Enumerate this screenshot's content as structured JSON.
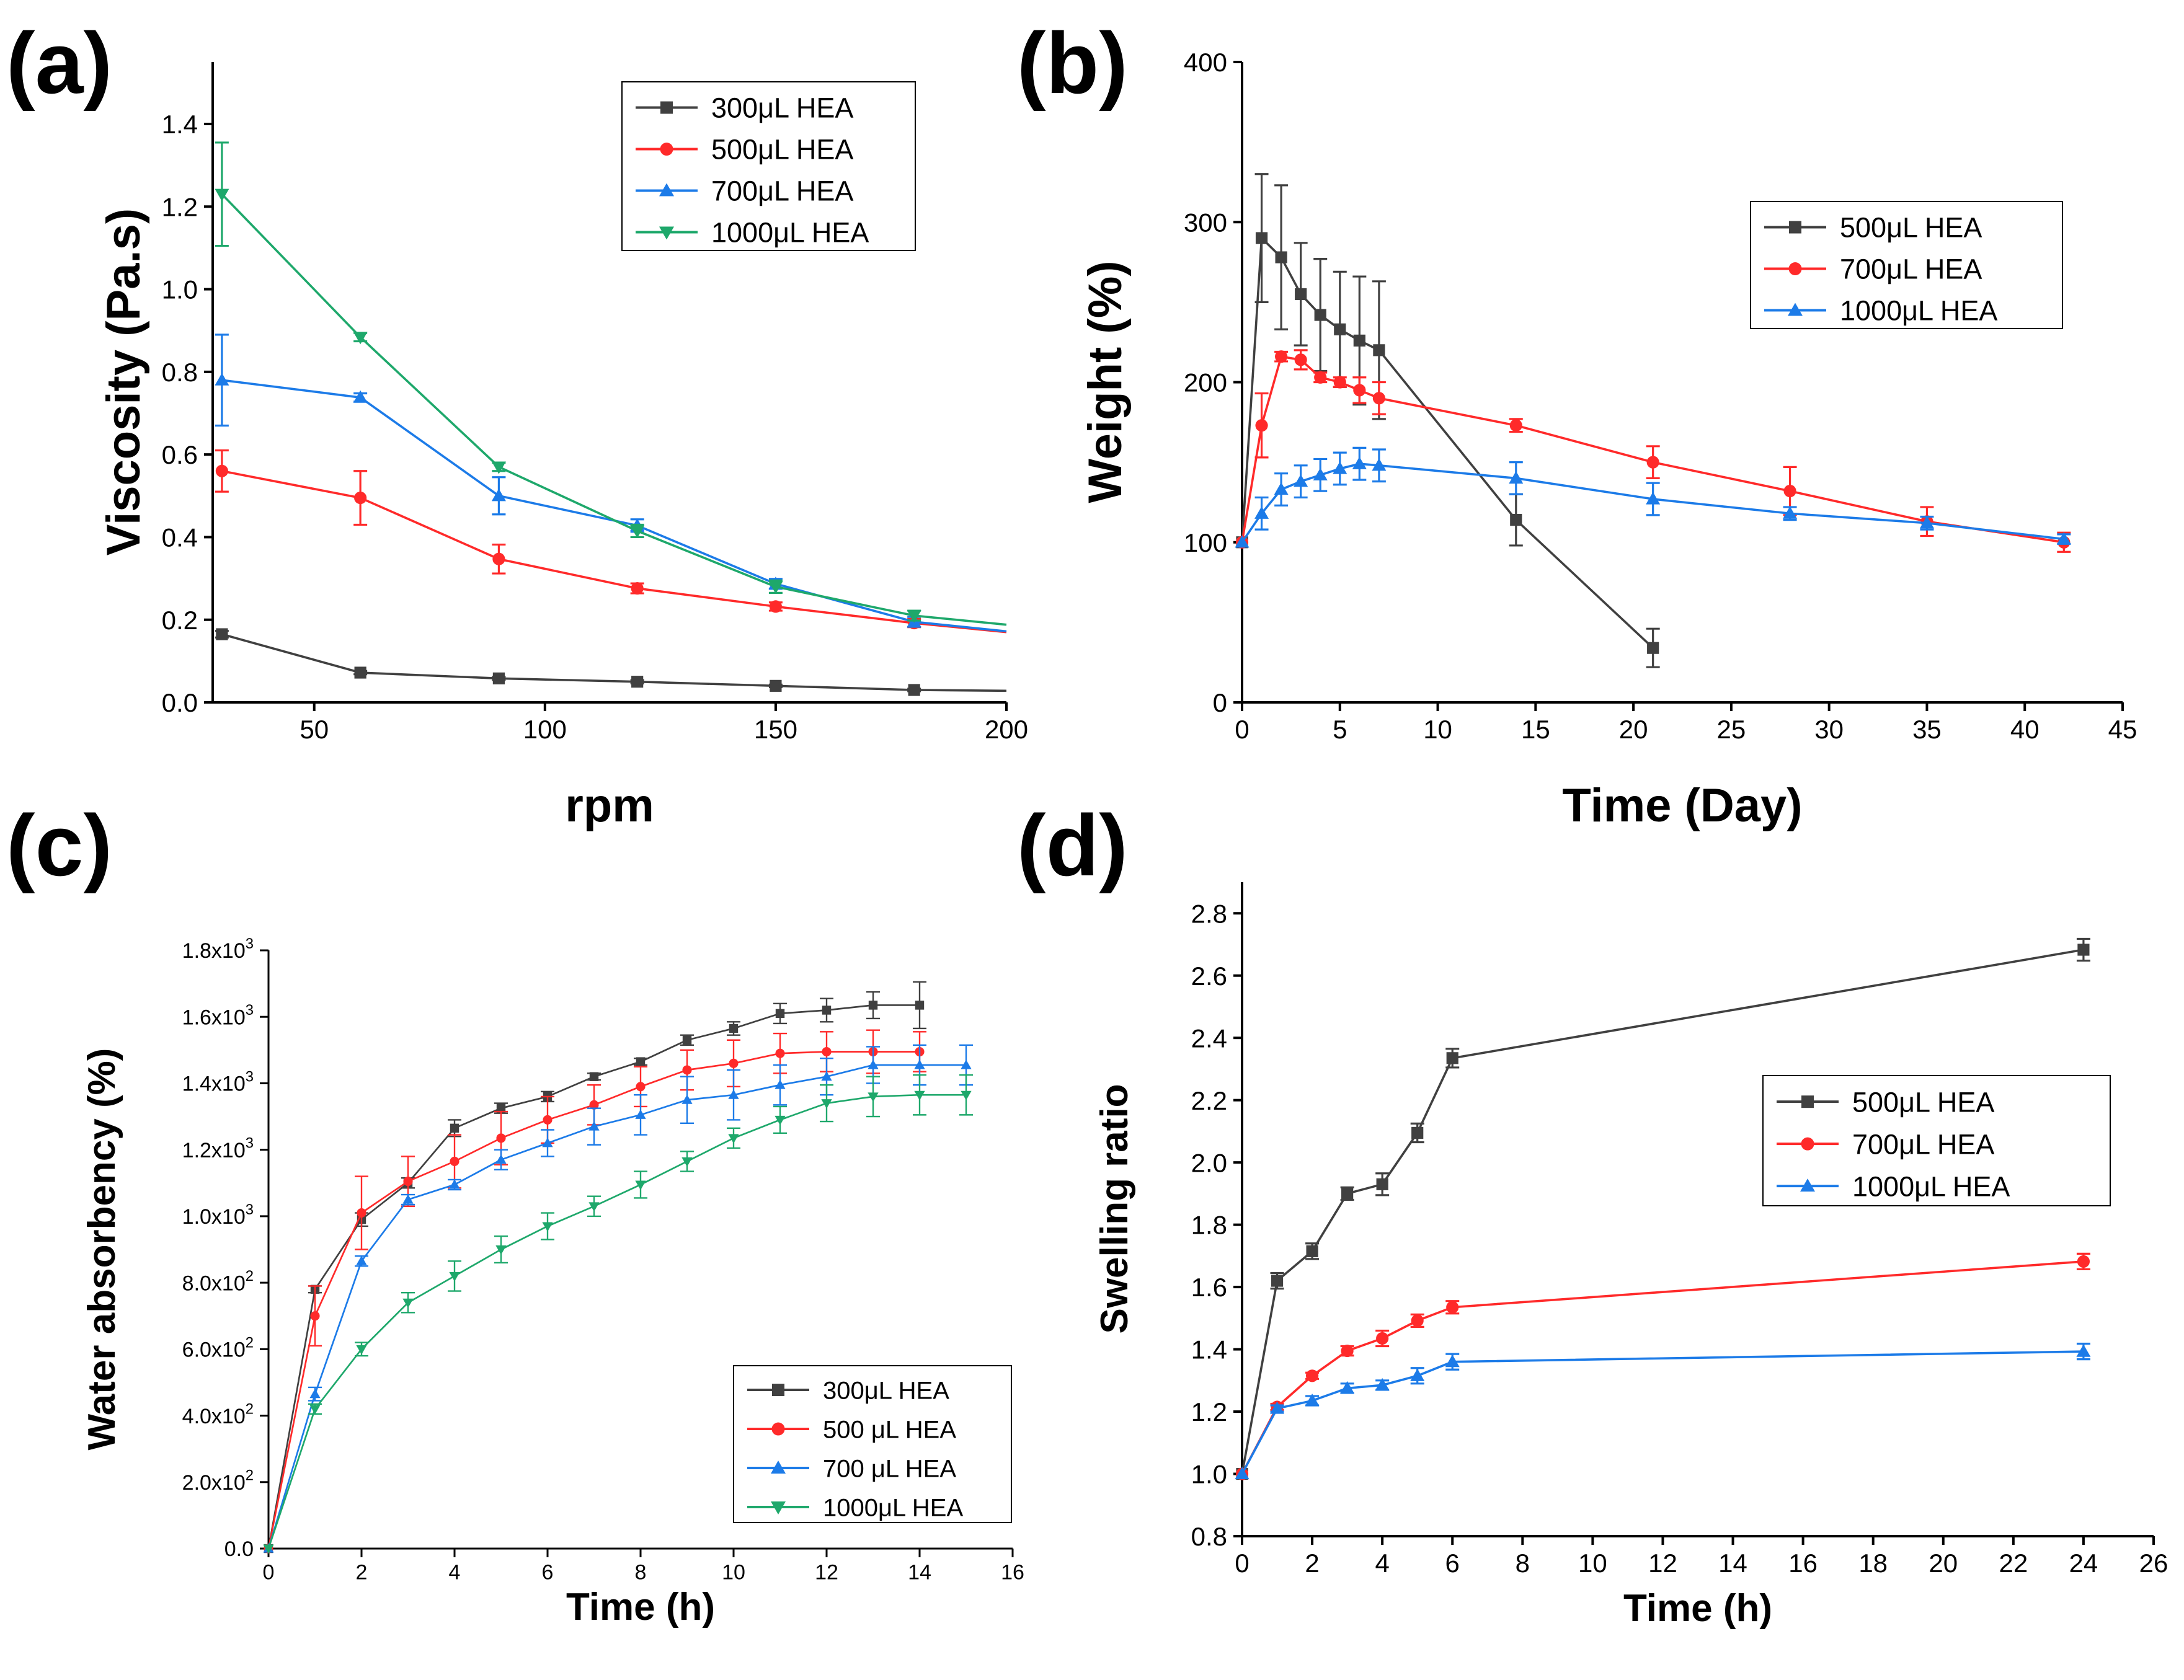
{
  "chart_data": [
    {
      "panel": "(a)",
      "type": "line",
      "title": "",
      "xlabel": "rpm",
      "ylabel": "Viscosity (Pa.s)",
      "xlim": [
        28,
        200
      ],
      "ylim": [
        0,
        1.55
      ],
      "xticks": [
        {
          "v": 50,
          "label": "50"
        },
        {
          "v": 100,
          "label": "100"
        },
        {
          "v": 150,
          "label": "150"
        },
        {
          "v": 200,
          "label": "200"
        }
      ],
      "yticks": [
        {
          "v": 0,
          "label": "0.0"
        },
        {
          "v": 0.2,
          "label": "0.2"
        },
        {
          "v": 0.4,
          "label": "0.4"
        },
        {
          "v": 0.6,
          "label": "0.6"
        },
        {
          "v": 0.8,
          "label": "0.8"
        },
        {
          "v": 1.0,
          "label": "1.0"
        },
        {
          "v": 1.2,
          "label": "1.2"
        },
        {
          "v": 1.4,
          "label": "1.4"
        }
      ],
      "legend_position": "top-right",
      "series": [
        {
          "name": "300μL HEA",
          "color": "#404040",
          "marker": "square",
          "x": [
            30,
            60,
            90,
            120,
            150,
            180,
            200
          ],
          "y": [
            0.165,
            0.072,
            0.058,
            0.05,
            0.04,
            0.03,
            0.028
          ],
          "err": [
            0.008,
            0.004,
            0.004,
            0.004,
            0.003,
            0.003,
            0
          ],
          "marked": [
            1,
            1,
            1,
            1,
            1,
            1,
            0
          ]
        },
        {
          "name": "500μL HEA",
          "color": "#ff2a2a",
          "marker": "circle",
          "x": [
            30,
            60,
            90,
            120,
            150,
            180,
            200
          ],
          "y": [
            0.56,
            0.495,
            0.347,
            0.276,
            0.232,
            0.192,
            0.17
          ],
          "err": [
            0.05,
            0.065,
            0.035,
            0.012,
            0.01,
            0.01,
            0
          ],
          "marked": [
            1,
            1,
            1,
            1,
            1,
            1,
            0
          ]
        },
        {
          "name": "700μL HEA",
          "color": "#1c7be8",
          "marker": "triangle-up",
          "x": [
            30,
            60,
            90,
            120,
            150,
            180,
            200
          ],
          "y": [
            0.78,
            0.738,
            0.5,
            0.428,
            0.287,
            0.195,
            0.172
          ],
          "err": [
            0.11,
            0.01,
            0.045,
            0.015,
            0.012,
            0.012,
            0
          ],
          "marked": [
            1,
            1,
            1,
            1,
            1,
            1,
            0
          ]
        },
        {
          "name": "1000μL HEA",
          "color": "#1ea86b",
          "marker": "triangle-down",
          "x": [
            30,
            60,
            90,
            120,
            150,
            180,
            200
          ],
          "y": [
            1.23,
            0.884,
            0.57,
            0.415,
            0.28,
            0.21,
            0.188
          ],
          "err": [
            0.125,
            0.01,
            0.01,
            0.015,
            0.015,
            0.012,
            0
          ],
          "marked": [
            1,
            1,
            1,
            1,
            1,
            1,
            0
          ]
        }
      ]
    },
    {
      "panel": "(b)",
      "type": "line",
      "title": "",
      "xlabel": "Time (Day)",
      "ylabel": "Weight (%)",
      "xlim": [
        0,
        45
      ],
      "ylim": [
        0,
        400
      ],
      "xticks": [
        {
          "v": 0,
          "label": "0"
        },
        {
          "v": 5,
          "label": "5"
        },
        {
          "v": 10,
          "label": "10"
        },
        {
          "v": 15,
          "label": "15"
        },
        {
          "v": 20,
          "label": "20"
        },
        {
          "v": 25,
          "label": "25"
        },
        {
          "v": 30,
          "label": "30"
        },
        {
          "v": 35,
          "label": "35"
        },
        {
          "v": 40,
          "label": "40"
        },
        {
          "v": 45,
          "label": "45"
        }
      ],
      "yticks": [
        {
          "v": 0,
          "label": "0"
        },
        {
          "v": 100,
          "label": "100"
        },
        {
          "v": 200,
          "label": "200"
        },
        {
          "v": 300,
          "label": "300"
        },
        {
          "v": 400,
          "label": "400"
        }
      ],
      "legend_position": "top-right",
      "series": [
        {
          "name": "500μL HEA",
          "color": "#404040",
          "marker": "square",
          "x": [
            0,
            1,
            2,
            3,
            4,
            5,
            6,
            7,
            14,
            21
          ],
          "y": [
            100,
            290,
            278,
            255,
            242,
            233,
            226,
            220,
            114,
            34
          ],
          "err": [
            0,
            40,
            45,
            32,
            35,
            36,
            40,
            43,
            16,
            12
          ],
          "marked": [
            1,
            1,
            1,
            1,
            1,
            1,
            1,
            1,
            1,
            1
          ]
        },
        {
          "name": "700μL HEA",
          "color": "#ff2a2a",
          "marker": "circle",
          "x": [
            0,
            1,
            2,
            3,
            4,
            5,
            6,
            7,
            14,
            21,
            28,
            35,
            42
          ],
          "y": [
            100,
            173,
            216,
            214,
            203,
            200,
            195,
            190,
            173,
            150,
            132,
            113,
            100
          ],
          "err": [
            0,
            20,
            3,
            6,
            3,
            3,
            8,
            10,
            4,
            10,
            15,
            9,
            6
          ],
          "marked": [
            1,
            1,
            1,
            1,
            1,
            1,
            1,
            1,
            1,
            1,
            1,
            1,
            1
          ]
        },
        {
          "name": "1000μL HEA",
          "color": "#1c7be8",
          "marker": "triangle-up",
          "x": [
            0,
            1,
            2,
            3,
            4,
            5,
            6,
            7,
            14,
            21,
            28,
            35,
            42
          ],
          "y": [
            100,
            118,
            133,
            138,
            142,
            146,
            149,
            148,
            140,
            127,
            118,
            112,
            102
          ],
          "err": [
            0,
            10,
            10,
            10,
            10,
            10,
            10,
            10,
            10,
            10,
            4,
            4,
            3
          ],
          "marked": [
            1,
            1,
            1,
            1,
            1,
            1,
            1,
            1,
            1,
            1,
            1,
            1,
            1
          ]
        }
      ]
    },
    {
      "panel": "(c)",
      "type": "line",
      "title": "",
      "xlabel": "Time (h)",
      "ylabel": "Water absorbency (%)",
      "xlim": [
        0,
        16
      ],
      "ylim": [
        0,
        1800
      ],
      "xticks": [
        {
          "v": 0,
          "label": "0"
        },
        {
          "v": 2,
          "label": "2"
        },
        {
          "v": 4,
          "label": "4"
        },
        {
          "v": 6,
          "label": "6"
        },
        {
          "v": 8,
          "label": "8"
        },
        {
          "v": 10,
          "label": "10"
        },
        {
          "v": 12,
          "label": "12"
        },
        {
          "v": 14,
          "label": "14"
        },
        {
          "v": 16,
          "label": "16"
        }
      ],
      "yticks": [
        {
          "v": 0,
          "label": "0.0",
          "mant": "",
          "exp": ""
        },
        {
          "v": 200,
          "label": "2.0x10²",
          "mant": "2.0x10",
          "exp": "2"
        },
        {
          "v": 400,
          "label": "4.0x10²",
          "mant": "4.0x10",
          "exp": "2"
        },
        {
          "v": 600,
          "label": "6.0x10²",
          "mant": "6.0x10",
          "exp": "2"
        },
        {
          "v": 800,
          "label": "8.0x10²",
          "mant": "8.0x10",
          "exp": "2"
        },
        {
          "v": 1000,
          "label": "1.0x10³",
          "mant": "1.0x10",
          "exp": "3"
        },
        {
          "v": 1200,
          "label": "1.2x10³",
          "mant": "1.2x10",
          "exp": "3"
        },
        {
          "v": 1400,
          "label": "1.4x10³",
          "mant": "1.4x10",
          "exp": "3"
        },
        {
          "v": 1600,
          "label": "1.6x10³",
          "mant": "1.6x10",
          "exp": "3"
        },
        {
          "v": 1800,
          "label": "1.8x10³",
          "mant": "1.8x10",
          "exp": "3"
        }
      ],
      "legend_position": "bottom-right",
      "series": [
        {
          "name": "300μL HEA",
          "color": "#404040",
          "marker": "square",
          "x": [
            0,
            1,
            2,
            3,
            4,
            5,
            6,
            7,
            8,
            9,
            10,
            11,
            12,
            13,
            14
          ],
          "y": [
            0,
            780,
            990,
            1100,
            1265,
            1325,
            1360,
            1420,
            1465,
            1530,
            1565,
            1610,
            1620,
            1635,
            1635
          ],
          "err": [
            0,
            10,
            20,
            15,
            25,
            15,
            15,
            10,
            10,
            15,
            20,
            30,
            35,
            40,
            70
          ],
          "marked": [
            1,
            1,
            1,
            1,
            1,
            1,
            1,
            1,
            1,
            1,
            1,
            1,
            1,
            1,
            1
          ]
        },
        {
          "name": "500 μL HEA",
          "color": "#ff2a2a",
          "marker": "circle",
          "x": [
            0,
            1,
            2,
            3,
            4,
            5,
            6,
            7,
            8,
            9,
            10,
            11,
            12,
            13,
            14
          ],
          "y": [
            0,
            700,
            1010,
            1105,
            1165,
            1235,
            1290,
            1335,
            1390,
            1440,
            1460,
            1490,
            1495,
            1495,
            1495
          ],
          "err": [
            0,
            90,
            110,
            75,
            80,
            80,
            70,
            60,
            60,
            60,
            70,
            60,
            60,
            65,
            60
          ],
          "marked": [
            1,
            1,
            1,
            1,
            1,
            1,
            1,
            1,
            1,
            1,
            1,
            1,
            1,
            1,
            1
          ]
        },
        {
          "name": "700 μL HEA",
          "color": "#1c7be8",
          "marker": "triangle-up",
          "x": [
            0,
            1,
            2,
            3,
            4,
            5,
            6,
            7,
            8,
            9,
            10,
            11,
            12,
            13,
            14,
            15
          ],
          "y": [
            0,
            465,
            865,
            1050,
            1095,
            1170,
            1220,
            1270,
            1305,
            1350,
            1365,
            1395,
            1420,
            1455,
            1455,
            1455
          ],
          "err": [
            0,
            20,
            15,
            15,
            15,
            30,
            40,
            55,
            60,
            70,
            75,
            60,
            55,
            55,
            60,
            60
          ],
          "marked": [
            1,
            1,
            1,
            1,
            1,
            1,
            1,
            1,
            1,
            1,
            1,
            1,
            1,
            1,
            1,
            1
          ]
        },
        {
          "name": "1000μL HEA",
          "color": "#1ea86b",
          "marker": "triangle-down",
          "x": [
            0,
            1,
            2,
            3,
            4,
            5,
            6,
            7,
            8,
            9,
            10,
            11,
            12,
            13,
            14,
            15
          ],
          "y": [
            0,
            420,
            600,
            740,
            820,
            900,
            970,
            1030,
            1095,
            1165,
            1235,
            1290,
            1340,
            1360,
            1365,
            1365
          ],
          "err": [
            0,
            15,
            20,
            30,
            45,
            40,
            40,
            30,
            40,
            30,
            30,
            40,
            55,
            60,
            60,
            60
          ],
          "marked": [
            1,
            1,
            1,
            1,
            1,
            1,
            1,
            1,
            1,
            1,
            1,
            1,
            1,
            1,
            1,
            1
          ]
        }
      ]
    },
    {
      "panel": "(d)",
      "type": "line",
      "title": "",
      "xlabel": "Time (h)",
      "ylabel": "Swelling ratio",
      "xlim": [
        0,
        26
      ],
      "ylim": [
        0.8,
        2.9
      ],
      "xticks": [
        {
          "v": 0,
          "label": "0"
        },
        {
          "v": 2,
          "label": "2"
        },
        {
          "v": 4,
          "label": "4"
        },
        {
          "v": 6,
          "label": "6"
        },
        {
          "v": 8,
          "label": "8"
        },
        {
          "v": 10,
          "label": "10"
        },
        {
          "v": 12,
          "label": "12"
        },
        {
          "v": 14,
          "label": "14"
        },
        {
          "v": 16,
          "label": "16"
        },
        {
          "v": 18,
          "label": "18"
        },
        {
          "v": 20,
          "label": "20"
        },
        {
          "v": 22,
          "label": "22"
        },
        {
          "v": 24,
          "label": "24"
        },
        {
          "v": 26,
          "label": "26"
        }
      ],
      "yticks": [
        {
          "v": 0.8,
          "label": "0.8"
        },
        {
          "v": 1.0,
          "label": "1.0"
        },
        {
          "v": 1.2,
          "label": "1.2"
        },
        {
          "v": 1.4,
          "label": "1.4"
        },
        {
          "v": 1.6,
          "label": "1.6"
        },
        {
          "v": 1.8,
          "label": "1.8"
        },
        {
          "v": 2.0,
          "label": "2.0"
        },
        {
          "v": 2.2,
          "label": "2.2"
        },
        {
          "v": 2.4,
          "label": "2.4"
        },
        {
          "v": 2.6,
          "label": "2.6"
        },
        {
          "v": 2.8,
          "label": "2.8"
        }
      ],
      "legend_position": "center-right",
      "series": [
        {
          "name": "500μL HEA",
          "color": "#404040",
          "marker": "square",
          "x": [
            0,
            1,
            2,
            3,
            4,
            5,
            6,
            24
          ],
          "y": [
            1.0,
            1.62,
            1.715,
            1.9,
            1.93,
            2.095,
            2.335,
            2.683
          ],
          "err": [
            0,
            0.025,
            0.025,
            0.02,
            0.035,
            0.03,
            0.03,
            0.035
          ],
          "marked": [
            1,
            1,
            1,
            1,
            1,
            1,
            1,
            1
          ]
        },
        {
          "name": "700μL HEA",
          "color": "#ff2a2a",
          "marker": "circle",
          "x": [
            0,
            1,
            2,
            3,
            4,
            5,
            6,
            24
          ],
          "y": [
            1.0,
            1.215,
            1.315,
            1.395,
            1.435,
            1.492,
            1.535,
            1.682
          ],
          "err": [
            0,
            0.01,
            0.01,
            0.015,
            0.025,
            0.02,
            0.02,
            0.025
          ],
          "marked": [
            1,
            1,
            1,
            1,
            1,
            1,
            1,
            1
          ]
        },
        {
          "name": "1000μL HEA",
          "color": "#1c7be8",
          "marker": "triangle-up",
          "x": [
            0,
            1,
            2,
            3,
            4,
            5,
            6,
            24
          ],
          "y": [
            1.0,
            1.21,
            1.235,
            1.275,
            1.285,
            1.315,
            1.36,
            1.393
          ],
          "err": [
            0,
            0.01,
            0.015,
            0.015,
            0.015,
            0.025,
            0.025,
            0.025
          ],
          "marked": [
            1,
            1,
            1,
            1,
            1,
            1,
            1,
            1
          ]
        }
      ]
    }
  ]
}
